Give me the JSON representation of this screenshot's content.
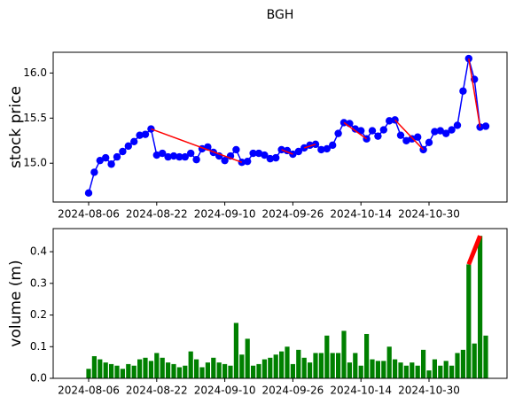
{
  "chart_data": [
    {
      "type": "line",
      "title": "BGH",
      "y_label": "stock price",
      "y_label_color": "#0000ff",
      "categories": [
        "2024-08-06",
        null,
        null,
        null,
        null,
        null,
        null,
        null,
        null,
        null,
        null,
        null,
        "2024-08-22",
        null,
        null,
        null,
        null,
        null,
        null,
        null,
        null,
        null,
        null,
        null,
        "2024-09-10",
        null,
        null,
        null,
        null,
        null,
        null,
        null,
        null,
        null,
        null,
        null,
        "2024-09-26",
        null,
        null,
        null,
        null,
        null,
        null,
        null,
        null,
        null,
        null,
        null,
        "2024-10-14",
        null,
        null,
        null,
        null,
        null,
        null,
        null,
        null,
        null,
        null,
        null,
        "2024-10-30",
        null,
        null,
        null,
        null,
        null,
        null,
        null,
        null,
        null,
        null
      ],
      "series": [
        {
          "color": "#0000ff",
          "marker": "circle",
          "values": [
            14.67,
            14.9,
            15.03,
            15.06,
            14.99,
            15.07,
            15.13,
            15.19,
            15.24,
            15.31,
            15.32,
            15.38,
            15.09,
            15.11,
            15.07,
            15.08,
            15.07,
            15.07,
            15.11,
            15.04,
            15.16,
            15.18,
            15.12,
            15.08,
            15.03,
            15.08,
            15.15,
            15.01,
            15.02,
            15.11,
            15.11,
            15.09,
            15.05,
            15.06,
            15.15,
            15.14,
            15.1,
            15.13,
            15.17,
            15.2,
            15.21,
            15.15,
            15.16,
            15.2,
            15.33,
            15.45,
            15.44,
            15.38,
            15.36,
            15.27,
            15.36,
            15.3,
            15.37,
            15.47,
            15.48,
            15.31,
            15.25,
            15.27,
            15.29,
            15.15,
            15.23,
            15.35,
            15.36,
            15.33,
            15.37,
            15.42,
            15.8,
            16.16,
            15.93,
            15.4,
            15.41
          ]
        }
      ],
      "segments": [
        {
          "color": "#ff0000",
          "x": [
            11,
            27
          ],
          "values": [
            15.38,
            15.01
          ]
        },
        {
          "color": "#ff0000",
          "x": [
            34,
            36
          ],
          "values": [
            15.15,
            15.1
          ]
        },
        {
          "color": "#ff0000",
          "x": [
            38,
            40
          ],
          "values": [
            15.17,
            15.21
          ]
        },
        {
          "color": "#ff0000",
          "x": [
            45,
            49
          ],
          "values": [
            15.45,
            15.27
          ]
        },
        {
          "color": "#ff0000",
          "x": [
            54,
            59
          ],
          "values": [
            15.48,
            15.15
          ]
        },
        {
          "color": "#ff0000",
          "x": [
            67,
            69
          ],
          "values": [
            16.16,
            15.4
          ]
        }
      ],
      "xlim": [
        -6.25,
        73.75
      ],
      "ylim": [
        14.57,
        16.23
      ],
      "yticks": [
        {
          "value": 15,
          "label": "15.0"
        },
        15.5,
        {
          "value": 16,
          "label": "16.0"
        }
      ]
    },
    {
      "type": "bar",
      "y_label": "volume (m)",
      "y_label_color": "#008000",
      "color": "#008000",
      "categories": [
        "2024-08-06",
        null,
        null,
        null,
        null,
        null,
        null,
        null,
        null,
        null,
        null,
        null,
        "2024-08-22",
        null,
        null,
        null,
        null,
        null,
        null,
        null,
        null,
        null,
        null,
        null,
        "2024-09-10",
        null,
        null,
        null,
        null,
        null,
        null,
        null,
        null,
        null,
        null,
        null,
        "2024-09-26",
        null,
        null,
        null,
        null,
        null,
        null,
        null,
        null,
        null,
        null,
        null,
        "2024-10-14",
        null,
        null,
        null,
        null,
        null,
        null,
        null,
        null,
        null,
        null,
        null,
        "2024-10-30",
        null,
        null,
        null,
        null,
        null,
        null,
        null,
        null,
        null,
        null
      ],
      "values": [
        0.03,
        0.07,
        0.06,
        0.05,
        0.045,
        0.04,
        0.03,
        0.045,
        0.04,
        0.06,
        0.065,
        0.055,
        0.08,
        0.065,
        0.05,
        0.045,
        0.035,
        0.04,
        0.085,
        0.06,
        0.035,
        0.05,
        0.065,
        0.05,
        0.045,
        0.04,
        0.175,
        0.075,
        0.125,
        0.04,
        0.045,
        0.06,
        0.065,
        0.075,
        0.085,
        0.1,
        0.045,
        0.09,
        0.065,
        0.05,
        0.08,
        0.08,
        0.135,
        0.08,
        0.08,
        0.15,
        0.05,
        0.08,
        0.04,
        0.14,
        0.06,
        0.055,
        0.055,
        0.1,
        0.06,
        0.05,
        0.04,
        0.05,
        0.04,
        0.09,
        0.025,
        0.06,
        0.04,
        0.055,
        0.04,
        0.08,
        0.09,
        0.36,
        0.11,
        0.45,
        0.135
      ],
      "segments": [
        {
          "color": "#ff0000",
          "x": [
            67,
            69
          ],
          "values": [
            0.36,
            0.45
          ]
        }
      ],
      "xlim": [
        -6.25,
        73.75
      ],
      "ylim": [
        0,
        0.473
      ],
      "yticks": [
        {
          "value": 0,
          "label": "0.0"
        },
        0.1,
        0.2,
        0.3,
        0.4
      ]
    }
  ]
}
